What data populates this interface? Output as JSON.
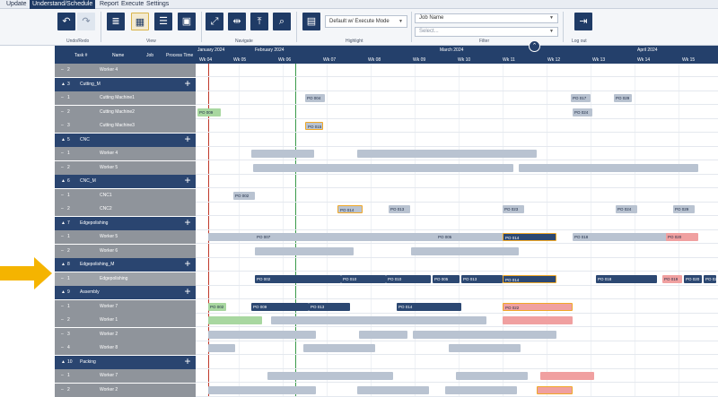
{
  "menu": {
    "items": [
      "Update",
      "Understand/Schedule",
      "Report",
      "Execute",
      "Settings"
    ],
    "active_index": 1
  },
  "ribbon": {
    "groups": {
      "undo": "Undo/Redo",
      "view": "View",
      "navigate": "Navigate",
      "highlight": "Highlight",
      "filter": "Filter",
      "logout": "Log out"
    },
    "highlight_mode": "Default w/ Execute Mode",
    "job_name_placeholder": "Job Name",
    "select_placeholder": "Select..."
  },
  "grid": {
    "columns": [
      "Task #",
      "Name",
      "Job",
      "Process Time"
    ],
    "rows": [
      {
        "kind": "res",
        "expand": "–",
        "num": "2",
        "name": "Worker 4"
      },
      {
        "kind": "grp",
        "expand": "▲",
        "num": "3",
        "name": "Cutting_M"
      },
      {
        "kind": "res",
        "expand": "–",
        "num": "1",
        "name": "Cutting Machine1"
      },
      {
        "kind": "res",
        "expand": "–",
        "num": "2",
        "name": "Cutting Machine2"
      },
      {
        "kind": "res",
        "expand": "–",
        "num": "3",
        "name": "Cutting Machine3"
      },
      {
        "kind": "grp",
        "expand": "▲",
        "num": "5",
        "name": "CNC"
      },
      {
        "kind": "res",
        "expand": "–",
        "num": "1",
        "name": "Worker 4"
      },
      {
        "kind": "res",
        "expand": "–",
        "num": "2",
        "name": "Worker 5"
      },
      {
        "kind": "grp",
        "expand": "▲",
        "num": "6",
        "name": "CNC_M"
      },
      {
        "kind": "res",
        "expand": "–",
        "num": "1",
        "name": "CNC1"
      },
      {
        "kind": "res",
        "expand": "–",
        "num": "2",
        "name": "CNC2"
      },
      {
        "kind": "grp",
        "expand": "▲",
        "num": "7",
        "name": "Edgepolishing"
      },
      {
        "kind": "res",
        "expand": "–",
        "num": "1",
        "name": "Worker 5"
      },
      {
        "kind": "res",
        "expand": "–",
        "num": "2",
        "name": "Worker 6"
      },
      {
        "kind": "grp",
        "expand": "▲",
        "num": "8",
        "name": "Edgepolishing_M"
      },
      {
        "kind": "sel",
        "expand": "–",
        "num": "1",
        "name": "Edgepolishing"
      },
      {
        "kind": "grp",
        "expand": "▲",
        "num": "9",
        "name": "Assembly"
      },
      {
        "kind": "res",
        "expand": "–",
        "num": "1",
        "name": "Worker 7"
      },
      {
        "kind": "res",
        "expand": "–",
        "num": "2",
        "name": "Worker 1"
      },
      {
        "kind": "res",
        "expand": "–",
        "num": "3",
        "name": "Worker 2"
      },
      {
        "kind": "res",
        "expand": "–",
        "num": "4",
        "name": "Worker 8"
      },
      {
        "kind": "grp",
        "expand": "▲",
        "num": "10",
        "name": "Packing"
      },
      {
        "kind": "res",
        "expand": "–",
        "num": "1",
        "name": "Worker 7"
      },
      {
        "kind": "res",
        "expand": "–",
        "num": "2",
        "name": "Worker 2"
      }
    ]
  },
  "timeline": {
    "months": [
      "January 2024",
      "February 2024",
      "March 2024",
      "April 2024"
    ],
    "weeks": [
      "Wk 04",
      "Wk 05",
      "Wk 06",
      "Wk 07",
      "Wk 08",
      "Wk 09",
      "Wk 10",
      "Wk 11",
      "Wk 12",
      "Wk 13",
      "Wk 14",
      "Wk 15"
    ],
    "markers": [
      "Planning Start",
      "Data Time Now"
    ]
  },
  "bars": {
    "edgepolishing": [
      "PO 002",
      "PO 010",
      "PO 010",
      "PO 005",
      "PO 013",
      "PO 014",
      "PO 018",
      "PO 019",
      "PO 020",
      "PO 024"
    ],
    "cnc2": [
      "PO 014",
      "PO 013",
      "PO 023",
      "PO 024",
      "PO 029"
    ],
    "cnc1": [
      "PO 002"
    ],
    "cutting2": [
      "PO 009",
      "PO 024"
    ],
    "cutting3": [
      "PO 015"
    ],
    "cutting1": [
      "PO 004",
      "PO 017",
      "PO 029"
    ],
    "w5": [
      "PO 007",
      "PO 005",
      "PO 014",
      "PO 018",
      "PO 020",
      "PO 021"
    ],
    "w7": [
      "PO 002",
      "PO 009",
      "PO 013",
      "PO 014",
      "PO 022"
    ]
  },
  "colors": {
    "navy": "#24406b",
    "highlight": "#f0a828",
    "arrow": "#f5b400"
  }
}
